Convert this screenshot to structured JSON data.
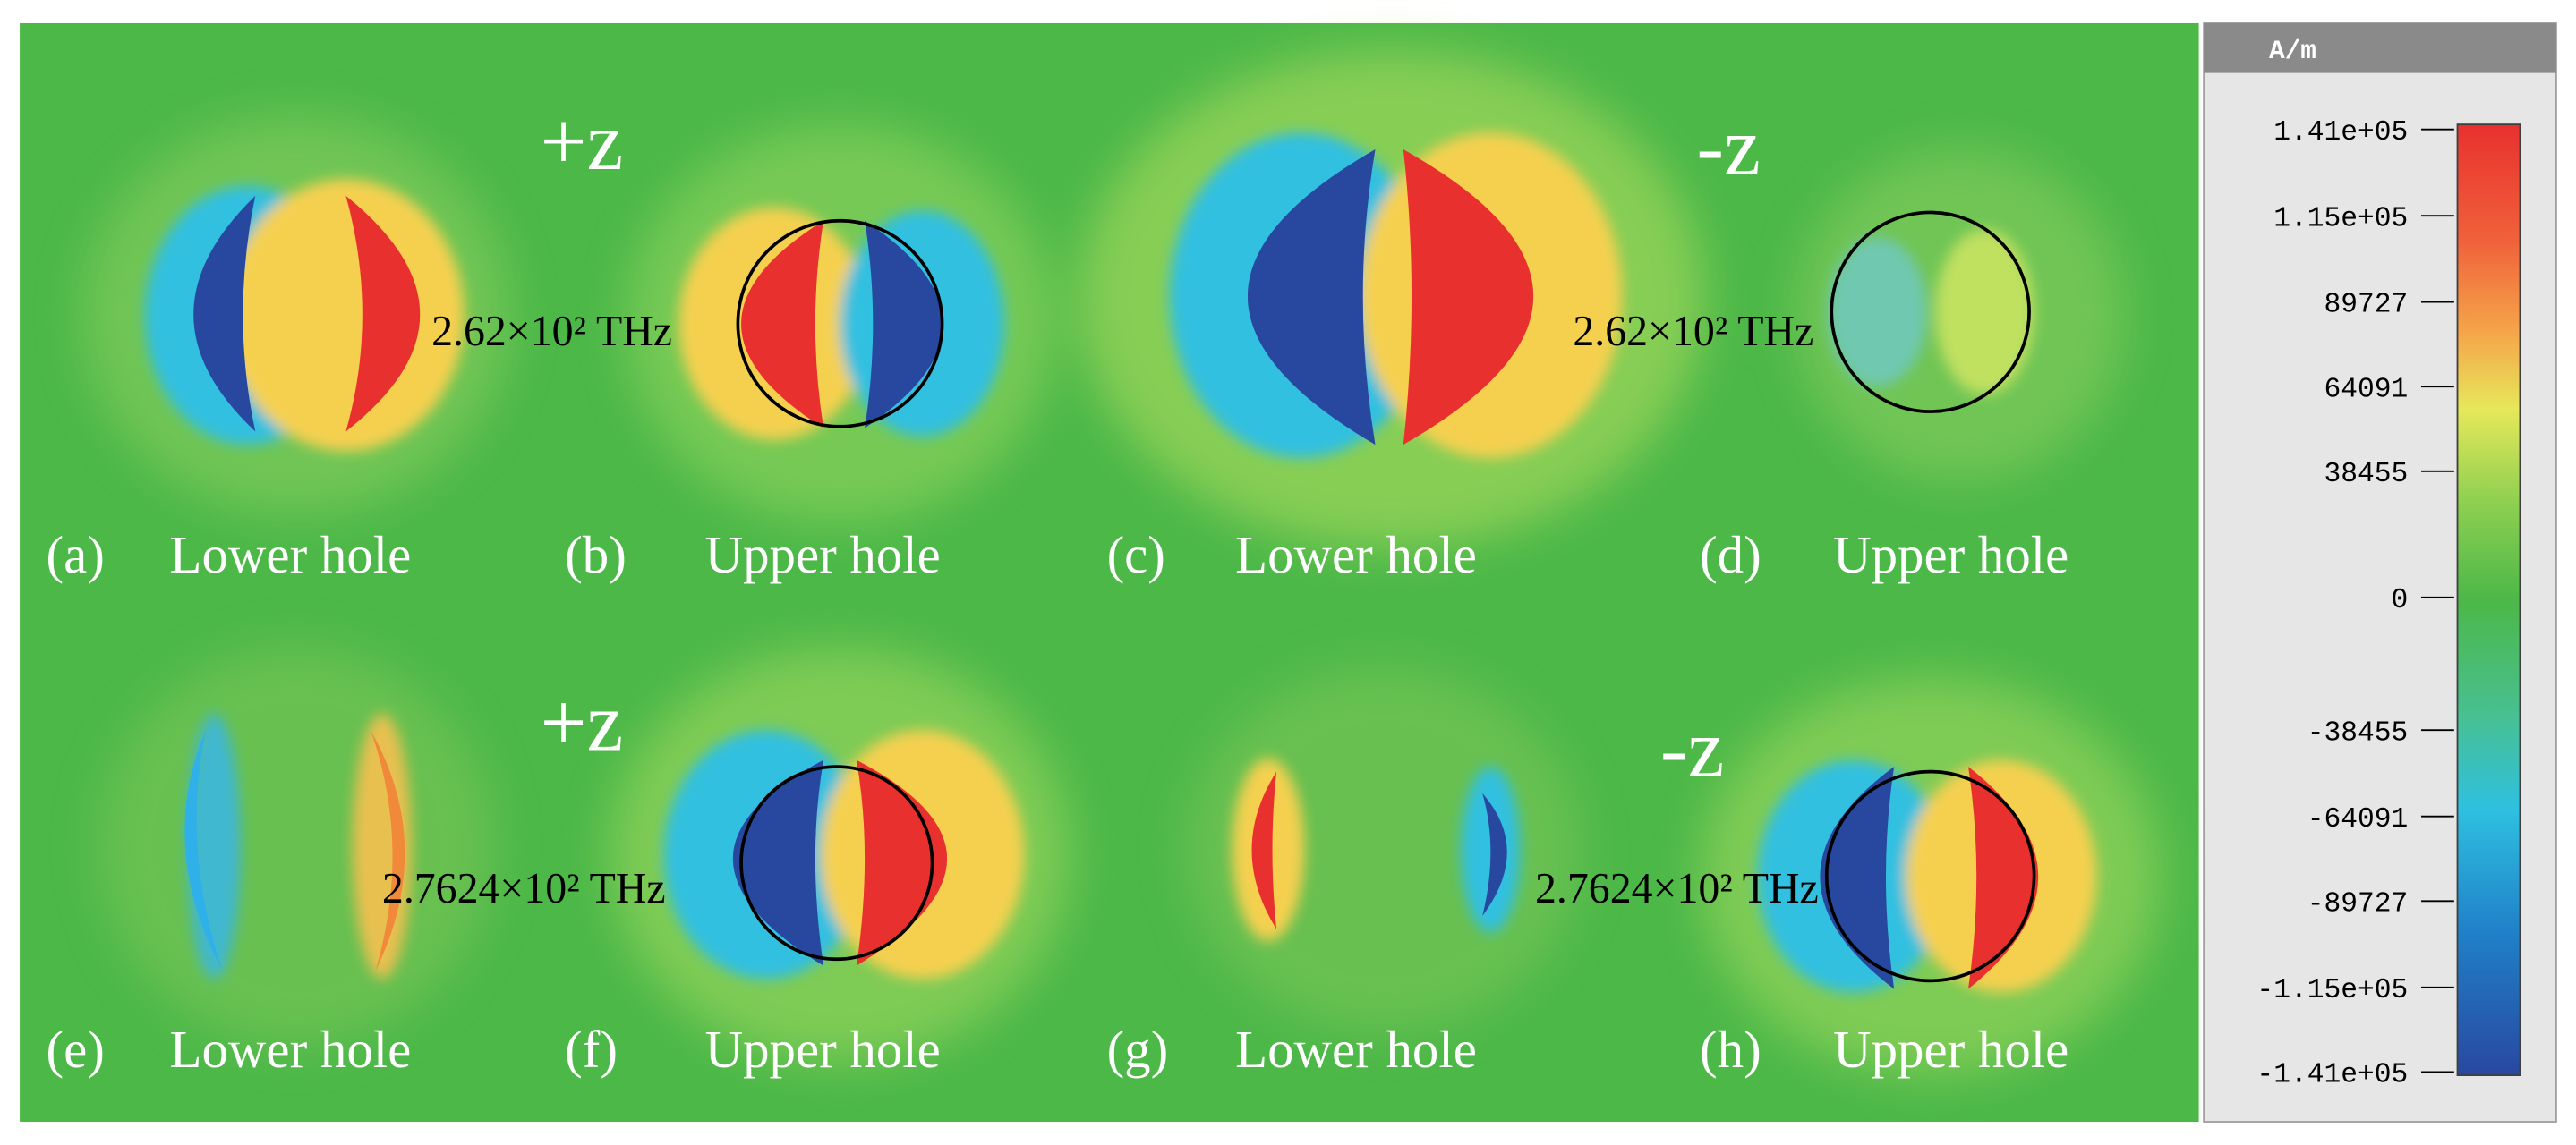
{
  "panels": [
    {
      "label": "(a)",
      "caption": "Lower hole"
    },
    {
      "label": "(b)",
      "caption": "Upper hole"
    },
    {
      "label": "(c)",
      "caption": "Lower hole"
    },
    {
      "label": "(d)",
      "caption": "Upper hole"
    },
    {
      "label": "(e)",
      "caption": "Lower hole"
    },
    {
      "label": "(f)",
      "caption": "Upper hole"
    },
    {
      "label": "(g)",
      "caption": "Lower hole"
    },
    {
      "label": "(h)",
      "caption": "Upper hole"
    }
  ],
  "directions": [
    "+z",
    "-z",
    "+z",
    "-z"
  ],
  "frequencies": [
    "2.62×10² THz",
    "2.62×10² THz",
    "2.7624×10² THz",
    "2.7624×10² THz"
  ],
  "colorbar": {
    "unit": "A/m",
    "ticks": [
      "1.41e+05",
      "1.15e+05",
      "89727",
      "64091",
      "38455",
      "0",
      "-38455",
      "-64091",
      "-89727",
      "-1.15e+05",
      "-1.41e+05"
    ]
  }
}
